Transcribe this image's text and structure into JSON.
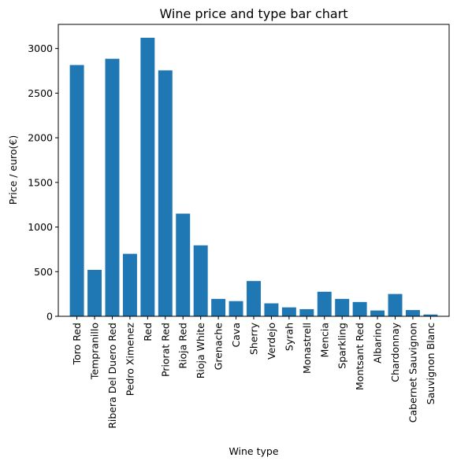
{
  "chart_data": {
    "type": "bar",
    "title": "Wine price and type bar chart",
    "xlabel": "Wine type",
    "ylabel": "Price / euro(€)",
    "ylim": [
      0,
      3270
    ],
    "yticks": [
      0,
      500,
      1000,
      1500,
      2000,
      2500,
      3000
    ],
    "categories": [
      "Toro Red",
      "Tempranillo",
      "Ribera Del Duero Red",
      "Pedro Ximenez",
      "Red",
      "Priorat Red",
      "Rioja Red",
      "Rioja White",
      "Grenache",
      "Cava",
      "Sherry",
      "Verdejo",
      "Syrah",
      "Monastrell",
      "Mencia",
      "Sparkling",
      "Montsant Red",
      "Albarino",
      "Chardonnay",
      "Cabernet Sauvignon",
      "Sauvignon Blanc"
    ],
    "values": [
      2815,
      520,
      2885,
      700,
      3120,
      2755,
      1150,
      795,
      195,
      170,
      395,
      145,
      100,
      80,
      275,
      195,
      160,
      65,
      250,
      70,
      20
    ],
    "bar_color": "#1f77b4",
    "grid": false,
    "legend": "none"
  }
}
